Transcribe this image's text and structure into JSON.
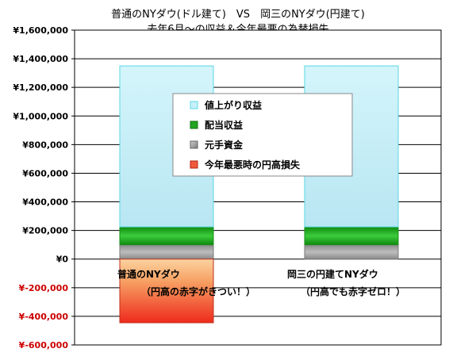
{
  "chart_data": {
    "type": "bar",
    "stacked": true,
    "title": "普通のNYダウ(ドル建て)　VS　岡三のNYダウ(円建て)",
    "subtitle": "去年6月～の収益＆今年最悪の為替損失",
    "categories": [
      "普通のNYダウ",
      "岡三の円建てNYダウ"
    ],
    "category_notes": [
      "（円高の赤字がきつい！）",
      "（円高でも赤字ゼロ！）"
    ],
    "series": [
      {
        "name": "元手資金",
        "color": "#9a9a9a",
        "values": [
          100000,
          100000
        ]
      },
      {
        "name": "配当収益",
        "color": "#22a522",
        "values": [
          125000,
          125000
        ]
      },
      {
        "name": "値上がり収益",
        "color": "#c8f0fa",
        "values": [
          1125000,
          1125000
        ]
      },
      {
        "name": "今年最悪時の円高損失",
        "color": "#f05a3c",
        "values": [
          -445000,
          0
        ]
      }
    ],
    "legend_order": [
      "値上がり収益",
      "配当収益",
      "元手資金",
      "今年最悪時の円高損失"
    ],
    "legend_position": "center",
    "ylim": [
      -600000,
      1600000
    ],
    "ytick_step": 200000,
    "yticks": [
      {
        "value": 1600000,
        "label": "¥1,600,000",
        "color": "#000000"
      },
      {
        "value": 1400000,
        "label": "¥1,400,000",
        "color": "#000000"
      },
      {
        "value": 1200000,
        "label": "¥1,200,000",
        "color": "#000000"
      },
      {
        "value": 1000000,
        "label": "¥1,000,000",
        "color": "#000000"
      },
      {
        "value": 800000,
        "label": "¥800,000",
        "color": "#000000"
      },
      {
        "value": 600000,
        "label": "¥600,000",
        "color": "#000000"
      },
      {
        "value": 400000,
        "label": "¥400,000",
        "color": "#000000"
      },
      {
        "value": 200000,
        "label": "¥200,000",
        "color": "#000000"
      },
      {
        "value": 0,
        "label": "¥0",
        "color": "#000000"
      },
      {
        "value": -200000,
        "label": "¥-200,000",
        "color": "#cc0000"
      },
      {
        "value": -400000,
        "label": "¥-400,000",
        "color": "#cc0000"
      },
      {
        "value": -600000,
        "label": "¥-600,000",
        "color": "#cc0000"
      }
    ],
    "grid": true,
    "plot_background": "#ffffff",
    "bar_outline_color": "#5ad8e6"
  }
}
